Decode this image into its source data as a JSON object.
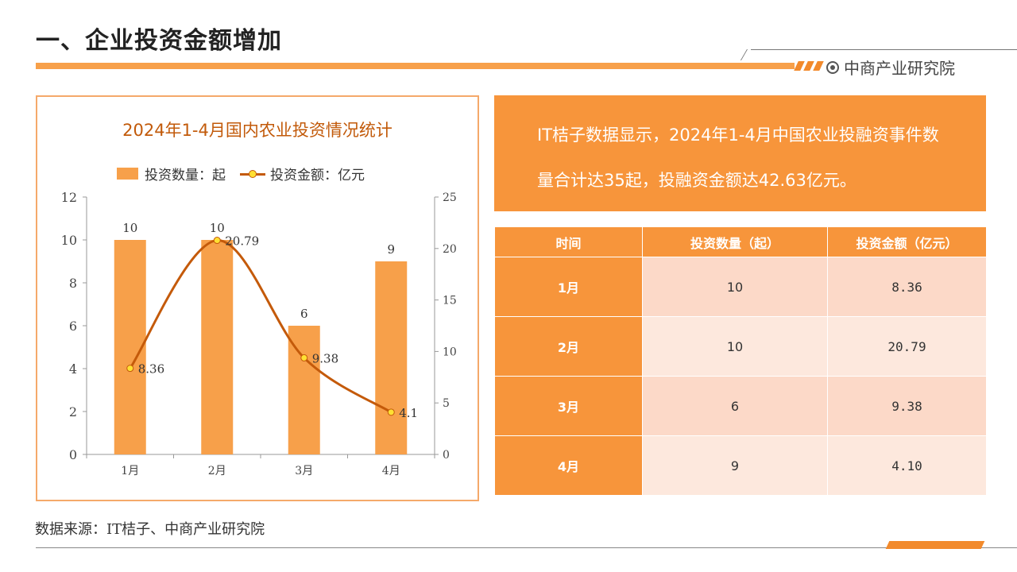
{
  "header": {
    "title": "一、企业投资金额增加",
    "brand": "中商产业研究院"
  },
  "chart_data": {
    "type": "bar",
    "title": "2024年1-4月国内农业投资情况统计",
    "categories": [
      "1月",
      "2月",
      "3月",
      "4月"
    ],
    "series": [
      {
        "name": "投资数量：起",
        "type": "bar",
        "axis": "left",
        "values": [
          10,
          10,
          6,
          9
        ]
      },
      {
        "name": "投资金额：亿元",
        "type": "line",
        "axis": "right",
        "values": [
          8.36,
          20.79,
          9.38,
          4.1
        ]
      }
    ],
    "bar_labels": [
      "10",
      "10",
      "6",
      "9"
    ],
    "line_labels": [
      "8.36",
      "20.79",
      "9.38",
      "4.1"
    ],
    "ylim_left": [
      0,
      12
    ],
    "yticks_left": [
      "0",
      "2",
      "4",
      "6",
      "8",
      "10",
      "12"
    ],
    "ylim_right": [
      0,
      25
    ],
    "yticks_right": [
      "0",
      "5",
      "10",
      "15",
      "20",
      "25"
    ],
    "colors": {
      "bar": "#f7a04a",
      "line": "#c45a0a",
      "marker": "#ffe033"
    },
    "legend_position": "top",
    "grid": false
  },
  "summary": {
    "text": "IT桔子数据显示，2024年1-4月中国农业投融资事件数量合计达35起，投融资金额达42.63亿元。"
  },
  "table": {
    "headers": [
      "时间",
      "投资数量（起）",
      "投资金额（亿元）"
    ],
    "rows": [
      {
        "month": "1月",
        "count": "10",
        "amount": "8.36"
      },
      {
        "month": "2月",
        "count": "10",
        "amount": "20.79"
      },
      {
        "month": "3月",
        "count": "6",
        "amount": "9.38"
      },
      {
        "month": "4月",
        "count": "9",
        "amount": "4.10"
      }
    ]
  },
  "source": "数据来源：IT桔子、中商产业研究院",
  "colors": {
    "accent": "#f7953b",
    "row_light": "#fde8dd",
    "row_mid": "#fcd9c8"
  }
}
